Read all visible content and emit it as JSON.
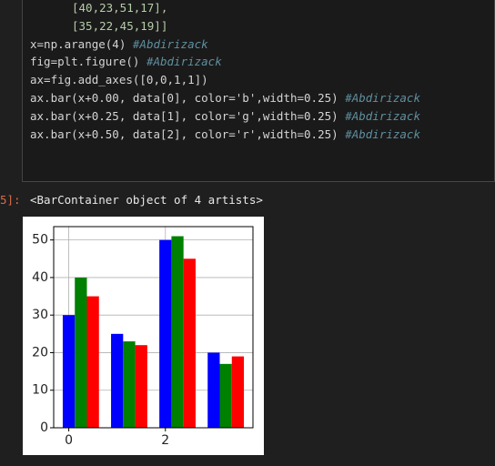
{
  "code_cell": {
    "lines": [
      {
        "code": "[40,23,51,17],",
        "indent": true
      },
      {
        "code": "[35,22,45,19]]",
        "indent": true
      },
      {
        "code": "x=np.arange(4) ",
        "comment": "#Abdirizack"
      },
      {
        "code": "fig=plt.figure() ",
        "comment": "#Abdirizack"
      },
      {
        "code": "ax=fig.add_axes([0,0,1,1])"
      },
      {
        "code": "ax.bar(x+0.00, data[0], color='b',width=0.25) ",
        "comment": "#Abdirizack"
      },
      {
        "code": "ax.bar(x+0.25, data[1], color='g',width=0.25) ",
        "comment": "#Abdirizack"
      },
      {
        "code": "ax.bar(x+0.50, data[2], color='r',width=0.25) ",
        "comment": "#Abdirizack"
      }
    ]
  },
  "output": {
    "prompt": "5]:",
    "text": "<BarContainer object of 4 artists>"
  },
  "chart_data": {
    "type": "bar",
    "x": [
      0,
      1,
      2,
      3
    ],
    "width": 0.25,
    "series": [
      {
        "color": "#0000ff",
        "offset": 0,
        "values": [
          30,
          25,
          50,
          20
        ]
      },
      {
        "color": "#008000",
        "offset": 0.25,
        "values": [
          40,
          23,
          51,
          17
        ]
      },
      {
        "color": "#ff0000",
        "offset": 0.5,
        "values": [
          35,
          22,
          45,
          19
        ]
      }
    ],
    "xlim": [
      -0.3125,
      3.8125
    ],
    "xticks": [
      0,
      2
    ],
    "ylim": [
      0,
      53.55
    ],
    "yticks": [
      0,
      10,
      20,
      30,
      40,
      50
    ],
    "grid": true
  }
}
